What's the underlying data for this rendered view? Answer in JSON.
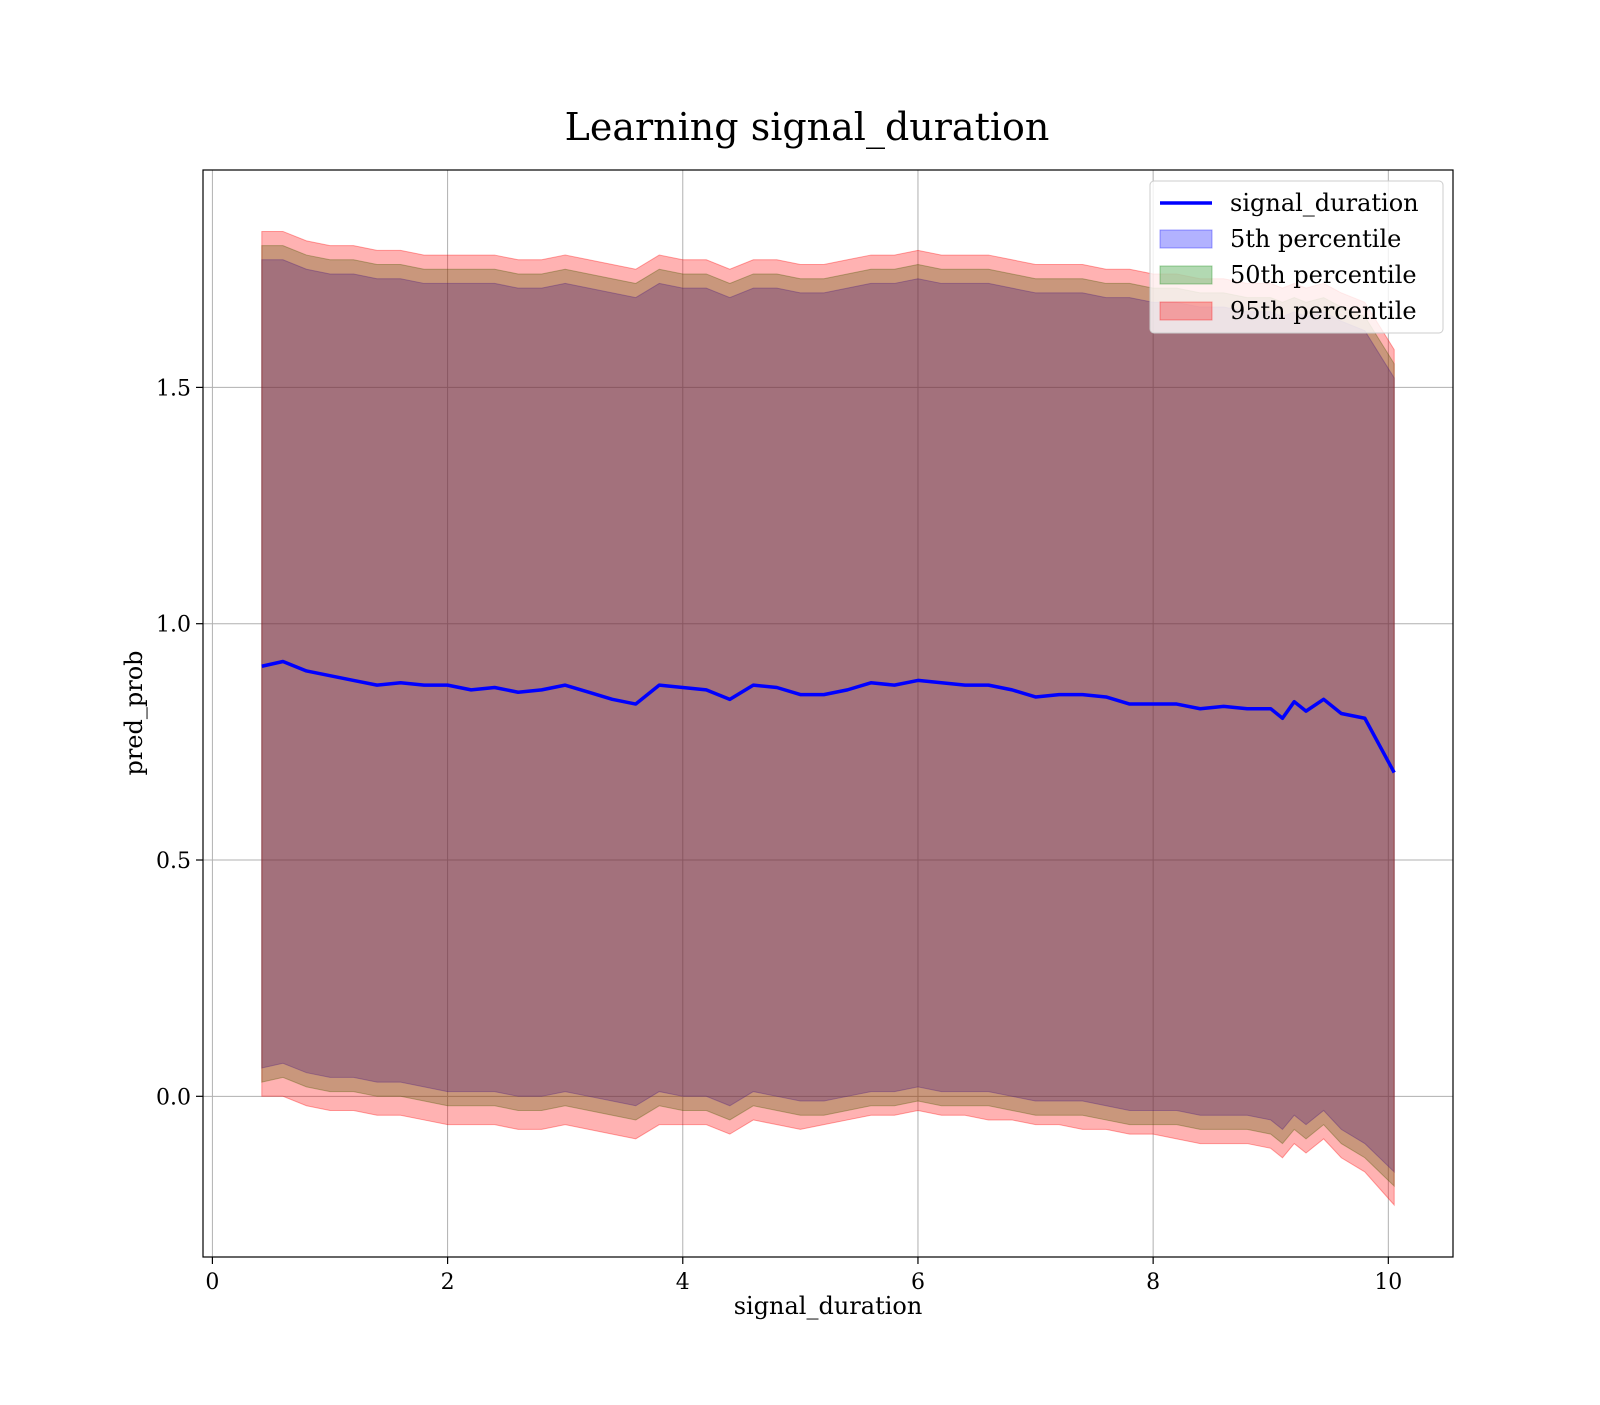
{
  "chart_data": {
    "type": "line",
    "title": "Learning signal_duration",
    "xlabel": "signal_duration",
    "ylabel": "pred_prob",
    "xlim": [
      -0.08,
      10.55
    ],
    "ylim": [
      -0.34,
      1.96
    ],
    "xticks": [
      0,
      2,
      4,
      6,
      8,
      10
    ],
    "xtick_labels": [
      "0",
      "2",
      "4",
      "6",
      "8",
      "10"
    ],
    "yticks": [
      0.0,
      0.5,
      1.0,
      1.5
    ],
    "ytick_labels": [
      "0.0",
      "0.5",
      "1.0",
      "1.5"
    ],
    "grid": true,
    "legend_position": "top-right",
    "x": [
      0.42,
      0.6,
      0.8,
      1.0,
      1.2,
      1.4,
      1.6,
      1.8,
      2.0,
      2.2,
      2.4,
      2.6,
      2.8,
      3.0,
      3.2,
      3.4,
      3.6,
      3.8,
      4.0,
      4.2,
      4.4,
      4.6,
      4.8,
      5.0,
      5.2,
      5.4,
      5.6,
      5.8,
      6.0,
      6.2,
      6.4,
      6.6,
      6.8,
      7.0,
      7.2,
      7.4,
      7.6,
      7.8,
      8.0,
      8.2,
      8.4,
      8.6,
      8.8,
      9.0,
      9.1,
      9.2,
      9.3,
      9.45,
      9.6,
      9.8,
      10.05
    ],
    "series": [
      {
        "name": "signal_duration",
        "color": "#0000ff",
        "values": [
          0.91,
          0.92,
          0.9,
          0.89,
          0.88,
          0.87,
          0.875,
          0.87,
          0.87,
          0.86,
          0.865,
          0.855,
          0.86,
          0.87,
          0.855,
          0.84,
          0.83,
          0.87,
          0.865,
          0.86,
          0.84,
          0.87,
          0.865,
          0.85,
          0.85,
          0.86,
          0.875,
          0.87,
          0.88,
          0.875,
          0.87,
          0.87,
          0.86,
          0.845,
          0.85,
          0.85,
          0.845,
          0.83,
          0.83,
          0.83,
          0.82,
          0.825,
          0.82,
          0.82,
          0.8,
          0.835,
          0.815,
          0.84,
          0.81,
          0.8,
          0.685
        ]
      }
    ],
    "bands": [
      {
        "name": "5th percentile",
        "color": "#0000ff",
        "lower": [
          0.06,
          0.07,
          0.05,
          0.04,
          0.04,
          0.03,
          0.03,
          0.02,
          0.01,
          0.01,
          0.01,
          0.0,
          0.0,
          0.01,
          0.0,
          -0.01,
          -0.02,
          0.01,
          0.0,
          0.0,
          -0.02,
          0.01,
          0.0,
          -0.01,
          -0.01,
          0.0,
          0.01,
          0.01,
          0.02,
          0.01,
          0.01,
          0.01,
          0.0,
          -0.01,
          -0.01,
          -0.01,
          -0.02,
          -0.03,
          -0.03,
          -0.03,
          -0.04,
          -0.04,
          -0.04,
          -0.05,
          -0.07,
          -0.04,
          -0.06,
          -0.03,
          -0.07,
          -0.1,
          -0.16
        ],
        "upper": [
          1.77,
          1.77,
          1.75,
          1.74,
          1.74,
          1.73,
          1.73,
          1.72,
          1.72,
          1.72,
          1.72,
          1.71,
          1.71,
          1.72,
          1.71,
          1.7,
          1.69,
          1.72,
          1.71,
          1.71,
          1.69,
          1.71,
          1.71,
          1.7,
          1.7,
          1.71,
          1.72,
          1.72,
          1.73,
          1.72,
          1.72,
          1.72,
          1.71,
          1.7,
          1.7,
          1.7,
          1.69,
          1.69,
          1.68,
          1.68,
          1.67,
          1.67,
          1.66,
          1.66,
          1.65,
          1.66,
          1.65,
          1.66,
          1.64,
          1.62,
          1.52
        ]
      },
      {
        "name": "50th percentile",
        "color": "#008000",
        "lower": [
          0.03,
          0.04,
          0.02,
          0.01,
          0.01,
          0.0,
          0.0,
          -0.01,
          -0.02,
          -0.02,
          -0.02,
          -0.03,
          -0.03,
          -0.02,
          -0.03,
          -0.04,
          -0.05,
          -0.02,
          -0.03,
          -0.03,
          -0.05,
          -0.02,
          -0.03,
          -0.04,
          -0.04,
          -0.03,
          -0.02,
          -0.02,
          -0.01,
          -0.02,
          -0.02,
          -0.02,
          -0.03,
          -0.04,
          -0.04,
          -0.04,
          -0.05,
          -0.06,
          -0.06,
          -0.06,
          -0.07,
          -0.07,
          -0.07,
          -0.08,
          -0.1,
          -0.07,
          -0.09,
          -0.06,
          -0.1,
          -0.13,
          -0.19
        ],
        "upper": [
          1.8,
          1.8,
          1.78,
          1.77,
          1.77,
          1.76,
          1.76,
          1.75,
          1.75,
          1.75,
          1.75,
          1.74,
          1.74,
          1.75,
          1.74,
          1.73,
          1.72,
          1.75,
          1.74,
          1.74,
          1.72,
          1.74,
          1.74,
          1.73,
          1.73,
          1.74,
          1.75,
          1.75,
          1.76,
          1.75,
          1.75,
          1.75,
          1.74,
          1.73,
          1.73,
          1.73,
          1.72,
          1.72,
          1.71,
          1.71,
          1.7,
          1.7,
          1.69,
          1.69,
          1.68,
          1.69,
          1.68,
          1.69,
          1.67,
          1.65,
          1.55
        ]
      },
      {
        "name": "95th percentile",
        "color": "#ff0000",
        "lower": [
          0.0,
          0.0,
          -0.02,
          -0.03,
          -0.03,
          -0.04,
          -0.04,
          -0.05,
          -0.06,
          -0.06,
          -0.06,
          -0.07,
          -0.07,
          -0.06,
          -0.07,
          -0.08,
          -0.09,
          -0.06,
          -0.06,
          -0.06,
          -0.08,
          -0.05,
          -0.06,
          -0.07,
          -0.06,
          -0.05,
          -0.04,
          -0.04,
          -0.03,
          -0.04,
          -0.04,
          -0.05,
          -0.05,
          -0.06,
          -0.06,
          -0.07,
          -0.07,
          -0.08,
          -0.08,
          -0.09,
          -0.1,
          -0.1,
          -0.1,
          -0.11,
          -0.13,
          -0.1,
          -0.12,
          -0.09,
          -0.13,
          -0.16,
          -0.23
        ],
        "upper": [
          1.83,
          1.83,
          1.81,
          1.8,
          1.8,
          1.79,
          1.79,
          1.78,
          1.78,
          1.78,
          1.78,
          1.77,
          1.77,
          1.78,
          1.77,
          1.76,
          1.75,
          1.78,
          1.77,
          1.77,
          1.75,
          1.77,
          1.77,
          1.76,
          1.76,
          1.77,
          1.78,
          1.78,
          1.79,
          1.78,
          1.78,
          1.78,
          1.77,
          1.76,
          1.76,
          1.76,
          1.75,
          1.75,
          1.74,
          1.74,
          1.73,
          1.73,
          1.72,
          1.72,
          1.71,
          1.72,
          1.71,
          1.72,
          1.7,
          1.68,
          1.58
        ]
      }
    ]
  }
}
